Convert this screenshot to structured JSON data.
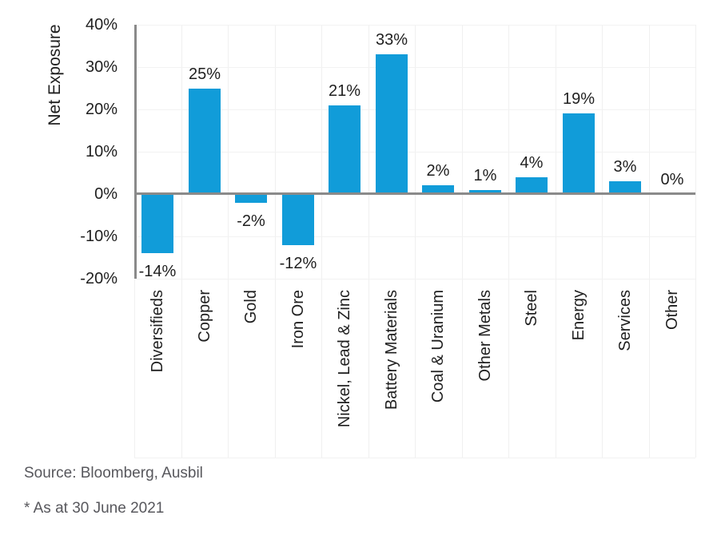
{
  "chart_data": {
    "type": "bar",
    "title": "",
    "xlabel": "",
    "ylabel": "Net Exposure",
    "categories": [
      "Diversifieds",
      "Copper",
      "Gold",
      "Iron Ore",
      "Nickel, Lead & Zinc",
      "Battery Materials",
      "Coal & Uranium",
      "Other Metals",
      "Steel",
      "Energy",
      "Services",
      "Other"
    ],
    "values": [
      -14,
      25,
      -2,
      -12,
      21,
      33,
      2,
      1,
      4,
      19,
      3,
      0
    ],
    "value_labels": [
      "-14%",
      "25%",
      "-2%",
      "-12%",
      "21%",
      "33%",
      "2%",
      "1%",
      "4%",
      "19%",
      "3%",
      "0%"
    ],
    "yticks": [
      40,
      30,
      20,
      10,
      0,
      -10,
      -20
    ],
    "ytick_labels": [
      "40%",
      "30%",
      "20%",
      "10%",
      "0%",
      "-10%",
      "-20%"
    ],
    "ylim": [
      -20,
      40
    ],
    "grid": true,
    "legend_position": "none",
    "bar_color": "#119CD9",
    "axis_color": "#8A8A8A",
    "text_color": "#1F1F1F",
    "note_color": "#57575C"
  },
  "footer": {
    "source": "Source: Bloomberg, Ausbil",
    "footnote": "* As at 30 June 2021"
  }
}
